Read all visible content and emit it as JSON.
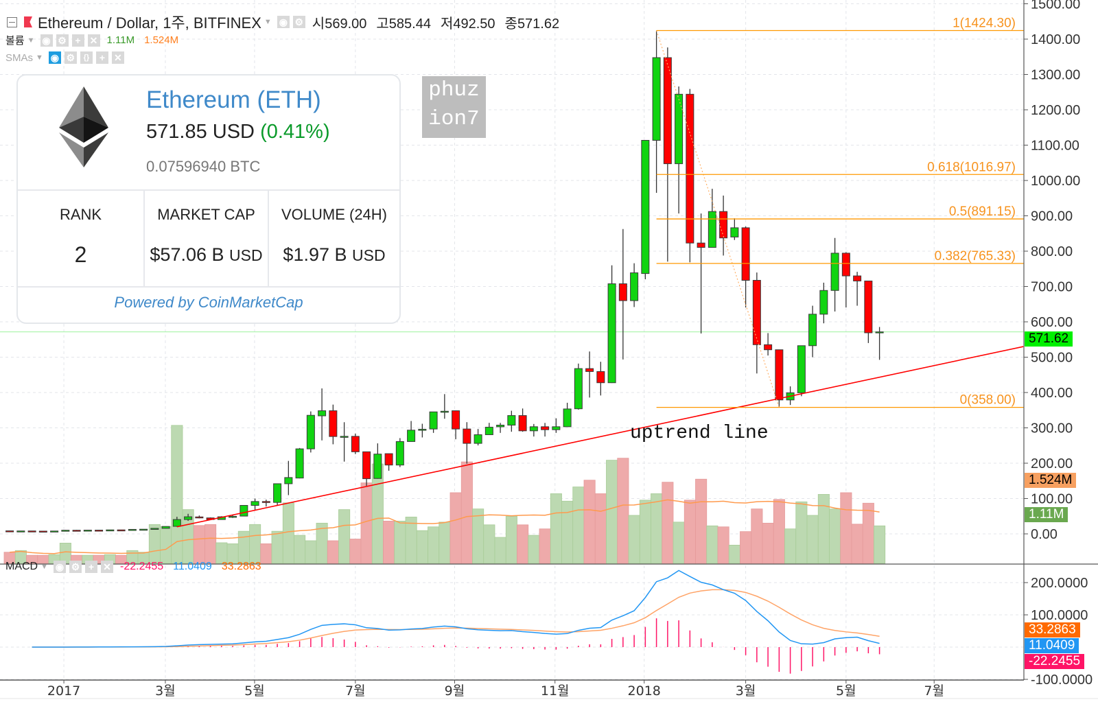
{
  "header": {
    "title": "Ethereum / Dollar, 1주, BITFINEX",
    "ohlc": [
      {
        "label": "시",
        "value": "569.00"
      },
      {
        "label": "고",
        "value": "585.44"
      },
      {
        "label": "저",
        "value": "492.50"
      },
      {
        "label": "종",
        "value": "571.62"
      }
    ],
    "volume_legend": {
      "label": "볼륨",
      "volume": "1.11M",
      "volume_sma": "1.524M"
    },
    "sma_legend": {
      "label": "SMAs"
    },
    "macd_legend": {
      "label": "MACD",
      "histogram": "-22.2455",
      "macd": "11.0409",
      "signal": "33.2863"
    }
  },
  "card": {
    "name": "Ethereum (ETH)",
    "price": "571.85 USD",
    "change": "(0.41%)",
    "btc_price": "0.07596940 BTC",
    "columns": [
      {
        "header": "RANK",
        "value": "2",
        "unit": ""
      },
      {
        "header": "MARKET CAP",
        "value": "$57.06 B",
        "unit": "USD"
      },
      {
        "header": "VOLUME (24H)",
        "value": "$1.97 B",
        "unit": "USD"
      }
    ],
    "powered_by": "Powered by CoinMarketCap"
  },
  "watermark": {
    "lines": [
      "phuz",
      "ion7"
    ]
  },
  "annotation": "uptrend line",
  "colors": {
    "up": "#11d411",
    "down": "#ff0000",
    "volume_up": "#bcd9b1",
    "volume_down": "#eeaaaa",
    "volume_sma": "#ff9a4d",
    "macd": "#2196f3",
    "signal": "#ffa366",
    "histogram": "#ff1466",
    "fib": "#ff9800",
    "fib_text": "#f7931e",
    "trendline": "#ff0000",
    "last_price": "#00f000"
  },
  "chart_data": {
    "type": "candlestick",
    "title": "Ethereum / Dollar, 1주, BITFINEX",
    "interval": "1 week",
    "candles_ohlc": [
      [
        8.6,
        9.1,
        7.8,
        8.2
      ],
      [
        7.9,
        8.5,
        7.6,
        8.3
      ],
      [
        8.3,
        8.5,
        7.4,
        7.8
      ],
      [
        7.8,
        8.2,
        7.2,
        7.5
      ],
      [
        7.5,
        8.4,
        7.2,
        8.1
      ],
      [
        8.1,
        11.0,
        8.0,
        10.3
      ],
      [
        10.3,
        11.2,
        9.5,
        10.0
      ],
      [
        10.0,
        10.8,
        9.6,
        10.6
      ],
      [
        10.6,
        11.0,
        10.3,
        10.5
      ],
      [
        10.5,
        11.4,
        10.2,
        11.3
      ],
      [
        11.3,
        11.6,
        10.6,
        10.9
      ],
      [
        10.9,
        12.9,
        10.8,
        12.7
      ],
      [
        12.7,
        13.5,
        12.2,
        13.2
      ],
      [
        13.2,
        16.0,
        12.9,
        15.6
      ],
      [
        15.6,
        21.5,
        15.3,
        21.0
      ],
      [
        21.3,
        48.4,
        20.0,
        40.6
      ],
      [
        40.6,
        56.8,
        36.8,
        48.4
      ],
      [
        48.0,
        52.0,
        44.0,
        47.0
      ],
      [
        45.2,
        46.5,
        40.0,
        40.6
      ],
      [
        40.6,
        50.0,
        40.0,
        48.4
      ],
      [
        48.4,
        53.5,
        45.0,
        49.7
      ],
      [
        50.3,
        81.0,
        50.0,
        80.6
      ],
      [
        80.6,
        100.0,
        67.7,
        91.6
      ],
      [
        91.6,
        96.8,
        77.4,
        89.0
      ],
      [
        89.0,
        142.0,
        80.6,
        141.9
      ],
      [
        141.9,
        206.5,
        109.7,
        159.4
      ],
      [
        158.0,
        243.0,
        157.0,
        240.6
      ],
      [
        240.6,
        346.5,
        230.3,
        335.5
      ],
      [
        334.0,
        411.6,
        264.5,
        348.4
      ],
      [
        348.4,
        365.8,
        253.5,
        275.5
      ],
      [
        275.5,
        316.0,
        204.5,
        276.0
      ],
      [
        276.0,
        283.9,
        225.8,
        232.3
      ],
      [
        232.3,
        232.3,
        135.5,
        156.1
      ],
      [
        156.8,
        256.1,
        156.0,
        225.8
      ],
      [
        227.0,
        227.0,
        178.7,
        194.8
      ],
      [
        194.8,
        271.0,
        189.0,
        261.3
      ],
      [
        261.3,
        319.4,
        261.0,
        293.5
      ],
      [
        293.5,
        311.6,
        272.9,
        296.0
      ],
      [
        296.8,
        345.2,
        285.8,
        345.2
      ],
      [
        345.2,
        395.5,
        325.8,
        347.0
      ],
      [
        348.4,
        349.0,
        267.7,
        296.8
      ],
      [
        296.8,
        316.1,
        198.7,
        256.1
      ],
      [
        256.1,
        296.8,
        250.3,
        280.6
      ],
      [
        280.6,
        314.2,
        280.0,
        301.9
      ],
      [
        303.0,
        314.0,
        285.8,
        307.7
      ],
      [
        307.7,
        348.4,
        289.0,
        334.8
      ],
      [
        334.8,
        354.8,
        289.0,
        291.6
      ],
      [
        291.6,
        311.0,
        275.5,
        303.2
      ],
      [
        303.2,
        314.0,
        275.5,
        294.8
      ],
      [
        294.8,
        327.0,
        285.8,
        303.2
      ],
      [
        303.2,
        371.0,
        303.0,
        353.5
      ],
      [
        354.0,
        481.9,
        351.6,
        467.7
      ],
      [
        467.7,
        516.1,
        385.8,
        459.4
      ],
      [
        459.4,
        487.0,
        391.6,
        427.7
      ],
      [
        427.7,
        760.0,
        427.0,
        707.7
      ],
      [
        707.7,
        862.6,
        493.5,
        660.0
      ],
      [
        660.0,
        765.8,
        641.9,
        738.7
      ],
      [
        736.7,
        1113.6,
        720.4,
        1113.6
      ],
      [
        1113.6,
        1424.3,
        965.0,
        1347.6
      ],
      [
        1347.6,
        1376.4,
        770.3,
        1047.4
      ],
      [
        1047.4,
        1266.0,
        906.5,
        1244.0
      ],
      [
        1244.0,
        1259.0,
        768.4,
        823.0
      ],
      [
        823.0,
        906.5,
        567.0,
        810.6
      ],
      [
        810.6,
        976.5,
        810.0,
        912.2
      ],
      [
        912.2,
        957.3,
        787.6,
        837.4
      ],
      [
        840.0,
        893.0,
        831.6,
        866.2
      ],
      [
        866.2,
        870.0,
        640.8,
        717.5
      ],
      [
        717.5,
        739.6,
        453.8,
        535.3
      ],
      [
        535.3,
        568.1,
        504.7,
        521.0
      ],
      [
        521.0,
        521.0,
        358.0,
        379.0
      ],
      [
        379.0,
        417.4,
        364.7,
        399.2
      ],
      [
        399.2,
        532.5,
        389.6,
        532.5
      ],
      [
        532.5,
        645.6,
        499.9,
        621.6
      ],
      [
        621.6,
        710.8,
        595.8,
        688.8
      ],
      [
        688.8,
        837.4,
        629.3,
        794.3
      ],
      [
        794.3,
        797.1,
        640.8,
        730.0
      ],
      [
        730.0,
        741.5,
        645.6,
        715.6
      ],
      [
        715.6,
        716.0,
        540.0,
        569.0
      ],
      [
        569.0,
        585.44,
        492.5,
        571.62
      ]
    ],
    "volume_millions": [
      0.33,
      0.38,
      0.24,
      0.24,
      0.26,
      0.6,
      0.24,
      0.24,
      0.24,
      0.26,
      0.24,
      0.38,
      0.33,
      1.15,
      1.09,
      4.08,
      1.59,
      1.12,
      1.15,
      0.61,
      0.58,
      0.95,
      1.15,
      0.58,
      0.95,
      1.79,
      0.83,
      0.67,
      1.19,
      0.67,
      1.59,
      0.72,
      2.38,
      2.94,
      1.25,
      1.25,
      1.37,
      0.97,
      1.08,
      1.22,
      2.09,
      3.0,
      1.61,
      1.14,
      0.77,
      1.39,
      1.14,
      0.83,
      1.02,
      2.06,
      1.84,
      2.26,
      2.46,
      2.06,
      3.05,
      3.11,
      1.42,
      1.87,
      2.06,
      2.4,
      1.22,
      1.87,
      2.49,
      1.11,
      1.08,
      0.54,
      0.94,
      1.61,
      1.19,
      1.89,
      1.02,
      1.82,
      1.42,
      2.04,
      1.61,
      2.09,
      1.16,
      1.78,
      1.11
    ],
    "volume_sma_period": 20,
    "x_ticks": [
      {
        "label": "2017",
        "week_index": 4.86
      },
      {
        "label": "3월",
        "week_index": 13.96
      },
      {
        "label": "5월",
        "week_index": 21.96
      },
      {
        "label": "7월",
        "week_index": 31.0
      },
      {
        "label": "9월",
        "week_index": 39.9
      },
      {
        "label": "11월",
        "week_index": 48.9
      },
      {
        "label": "2018",
        "week_index": 56.9
      },
      {
        "label": "3월",
        "week_index": 66.0
      },
      {
        "label": "5월",
        "week_index": 75.0
      },
      {
        "label": "7월",
        "week_index": 82.9
      }
    ],
    "price_axis": {
      "range": [
        0,
        1500
      ],
      "labels": [
        {
          "text": "1500.00",
          "value": 1500
        },
        {
          "text": "1400.00",
          "value": 1400
        },
        {
          "text": "1300.00",
          "value": 1300
        },
        {
          "text": "1200.00",
          "value": 1200
        },
        {
          "text": "1100.00",
          "value": 1100
        },
        {
          "text": "1000.00",
          "value": 1000
        },
        {
          "text": "900.00",
          "value": 900
        },
        {
          "text": "800.00",
          "value": 800
        },
        {
          "text": "700.00",
          "value": 700
        },
        {
          "text": "600.00",
          "value": 600
        },
        {
          "text": "500.00",
          "value": 500
        },
        {
          "text": "400.00",
          "value": 400
        },
        {
          "text": "300.00",
          "value": 300
        },
        {
          "text": "200.00",
          "value": 200
        },
        {
          "text": "100.00",
          "value": 100
        },
        {
          "text": "0.00",
          "value": 0
        }
      ]
    },
    "last_price": {
      "text": "571.62",
      "value": 571.62
    },
    "volume_labels": {
      "sma": "1.524M",
      "volume": "1.11M"
    },
    "fib_retracement": {
      "from": {
        "week_index": 58,
        "price": 1424.3
      },
      "to": {
        "week_index": 69,
        "price": 358.0
      },
      "levels": [
        {
          "label": "1(1424.30)",
          "price": 1424.3
        },
        {
          "label": "0.618(1016.97)",
          "price": 1016.97
        },
        {
          "label": "0.5(891.15)",
          "price": 891.15
        },
        {
          "label": "0.382(765.33)",
          "price": 765.33
        },
        {
          "label": "0(358.00)",
          "price": 358.0
        }
      ]
    },
    "uptrend_line": {
      "from": {
        "week_index": 15,
        "price": 20
      },
      "to": {
        "week_index": 90.9,
        "price": 530
      }
    },
    "macd": {
      "fast": 12,
      "slow": 26,
      "signal": 9,
      "axis_labels": [
        {
          "text": "200.0000",
          "value": 200
        },
        {
          "text": "100.0000",
          "value": 100
        },
        {
          "text": "-100.0000",
          "value": -100
        }
      ],
      "last": {
        "signal": "33.2863",
        "macd": "11.0409",
        "histogram": "-22.2455"
      }
    }
  }
}
